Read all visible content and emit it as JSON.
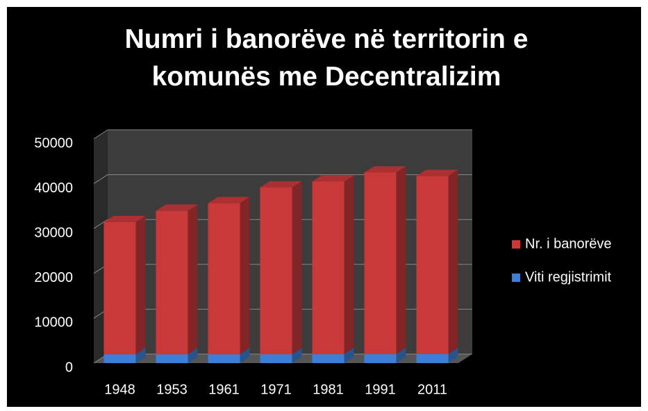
{
  "chart_data": {
    "type": "bar3d_stacked",
    "title": "Numri i banorëve në territorin e komunës me Decentralizim",
    "categories": [
      "1948",
      "1953",
      "1961",
      "1971",
      "1981",
      "1991",
      "2011"
    ],
    "series": [
      {
        "name": "Viti regjistrimit",
        "color": "#3d7fd6",
        "values": [
          1948,
          1953,
          1961,
          1971,
          1981,
          1991,
          2011
        ]
      },
      {
        "name": "Nr. i banorëve",
        "color": "#c9393a",
        "values": [
          29500,
          32000,
          33700,
          37200,
          38500,
          40500,
          39700
        ]
      }
    ],
    "ylim": [
      0,
      50000
    ],
    "yticks": [
      0,
      10000,
      20000,
      30000,
      40000,
      50000
    ],
    "grid": true,
    "legend": "right"
  }
}
